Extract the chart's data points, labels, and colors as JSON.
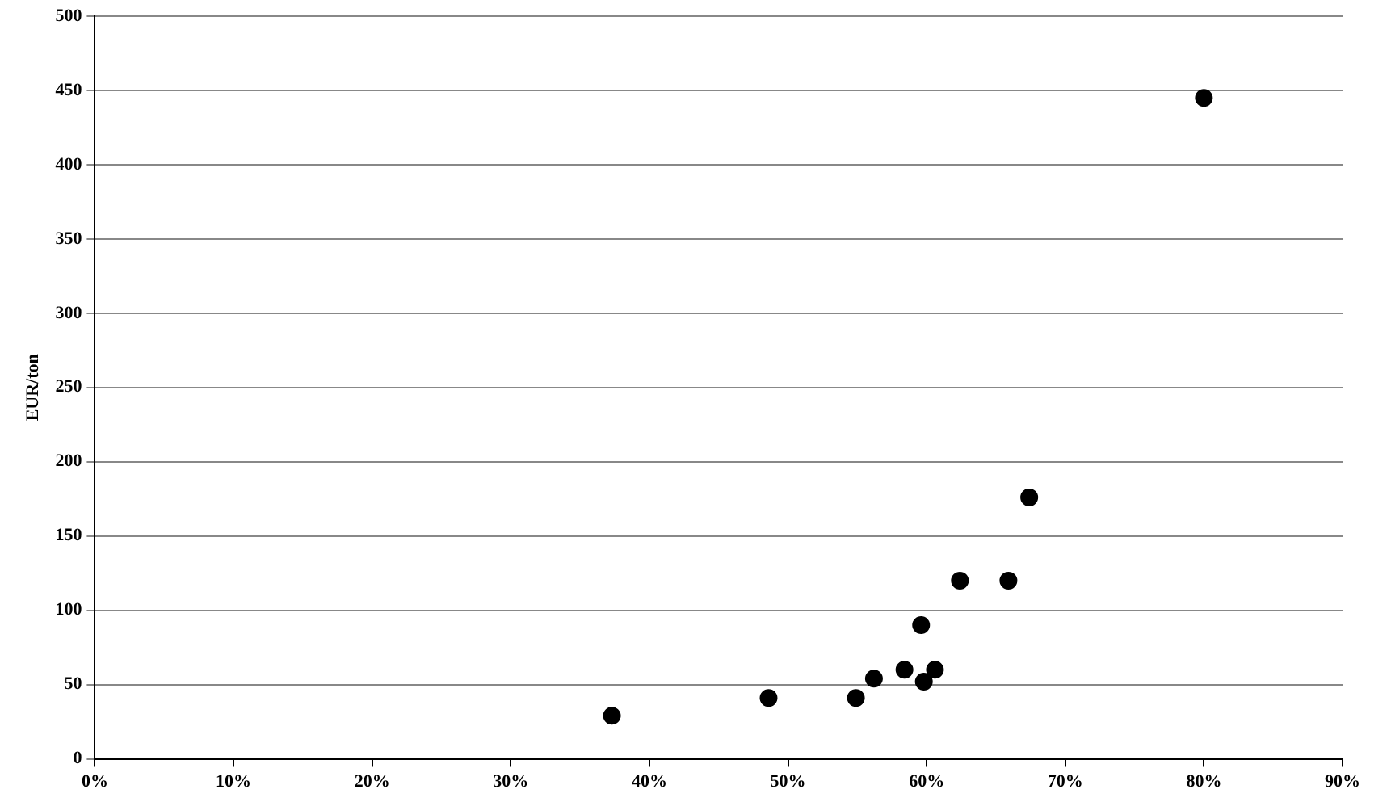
{
  "chart_data": {
    "type": "scatter",
    "ylabel": "EUR/ton",
    "x": [
      37.3,
      48.6,
      54.9,
      56.2,
      58.4,
      59.6,
      59.8,
      60.6,
      62.4,
      65.9,
      67.4,
      80
    ],
    "values": [
      29,
      41,
      41,
      54,
      60,
      90,
      52,
      60,
      120,
      120,
      176,
      445
    ],
    "color": "#000000",
    "marker": "circle",
    "grid": "y",
    "legend": false,
    "xlim": [
      0,
      90
    ],
    "xticks": [
      {
        "value": 0,
        "label": "0%"
      },
      {
        "value": 10,
        "label": "10%"
      },
      {
        "value": 20,
        "label": "20%"
      },
      {
        "value": 30,
        "label": "30%"
      },
      {
        "value": 40,
        "label": "40%"
      },
      {
        "value": 50,
        "label": "50%"
      },
      {
        "value": 60,
        "label": "60%"
      },
      {
        "value": 70,
        "label": "70%"
      },
      {
        "value": 80,
        "label": "80%"
      },
      {
        "value": 90,
        "label": "90%"
      }
    ],
    "ylim": [
      0,
      500
    ],
    "yticks": [
      0,
      50,
      100,
      150,
      200,
      250,
      300,
      350,
      400,
      450,
      500
    ]
  }
}
